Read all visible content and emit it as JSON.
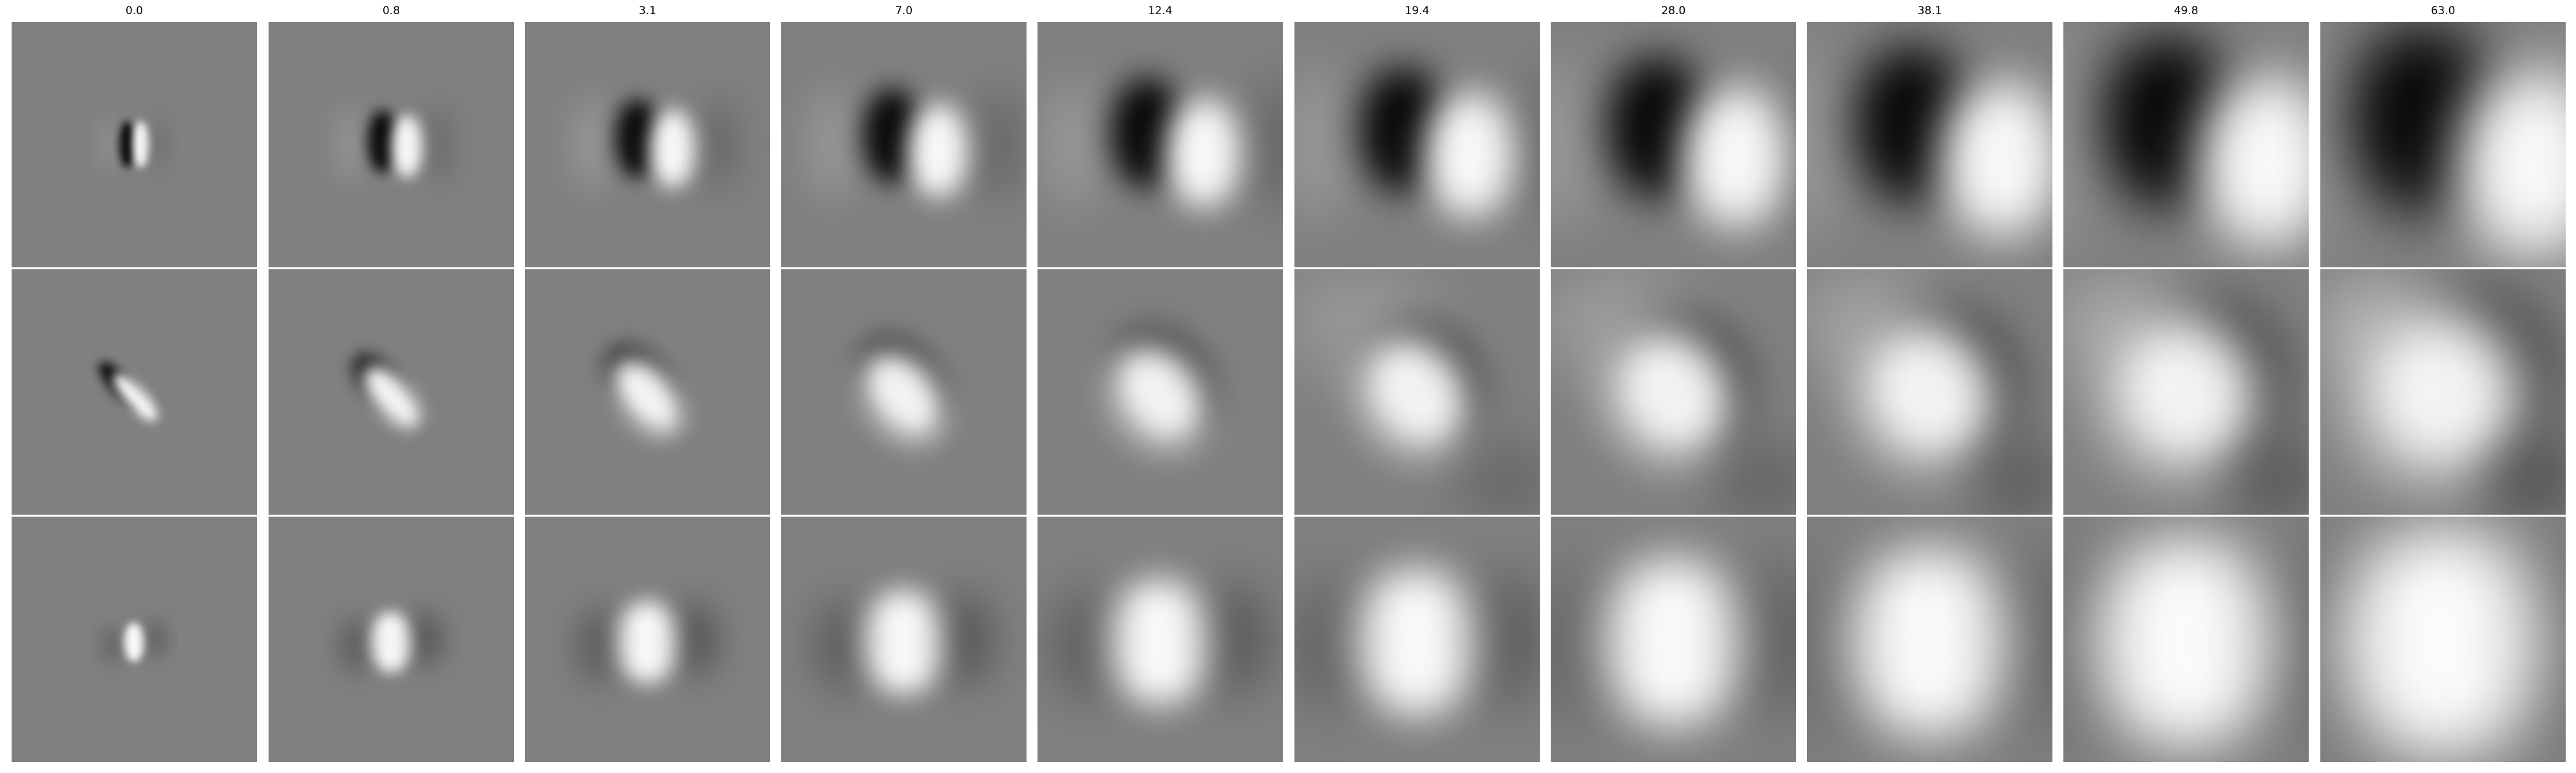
{
  "columns": [
    "0.0",
    "0.8",
    "3.1",
    "7.0",
    "12.4",
    "19.4",
    "28.0",
    "38.1",
    "49.8",
    "63.0"
  ],
  "rows": 3,
  "colormap": {
    "background": "#ffffff",
    "neutral_gray": "#808080",
    "black": "#000000",
    "white": "#ffffff"
  }
}
